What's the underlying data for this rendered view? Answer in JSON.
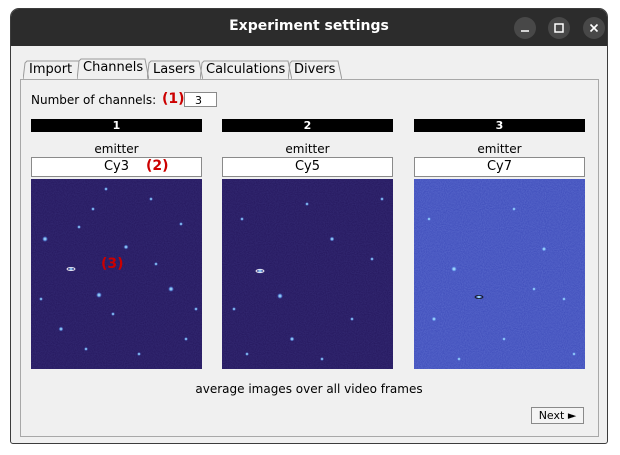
{
  "window": {
    "title": "Experiment settings"
  },
  "tabs": [
    "Import",
    "Channels",
    "Lasers",
    "Calculations",
    "Divers"
  ],
  "channels_section": {
    "number_label": "Number of channels:",
    "number_value": "3",
    "callouts": [
      "(1)",
      "(2)",
      "(3)"
    ],
    "channels": [
      {
        "header": "1",
        "emitter_label": "emitter",
        "emitter": "Cy3"
      },
      {
        "header": "2",
        "emitter_label": "emitter",
        "emitter": "Cy5"
      },
      {
        "header": "3",
        "emitter_label": "emitter",
        "emitter": "Cy7"
      }
    ],
    "caption": "average images over all video frames"
  },
  "buttons": {
    "next": "Next ►"
  },
  "colors": {
    "titlebar": "#2c2c2c",
    "image_dark": "#24165c",
    "image_bright": "#3b49b8",
    "spot": "#9fe6ff",
    "callout": "#cc0000"
  }
}
